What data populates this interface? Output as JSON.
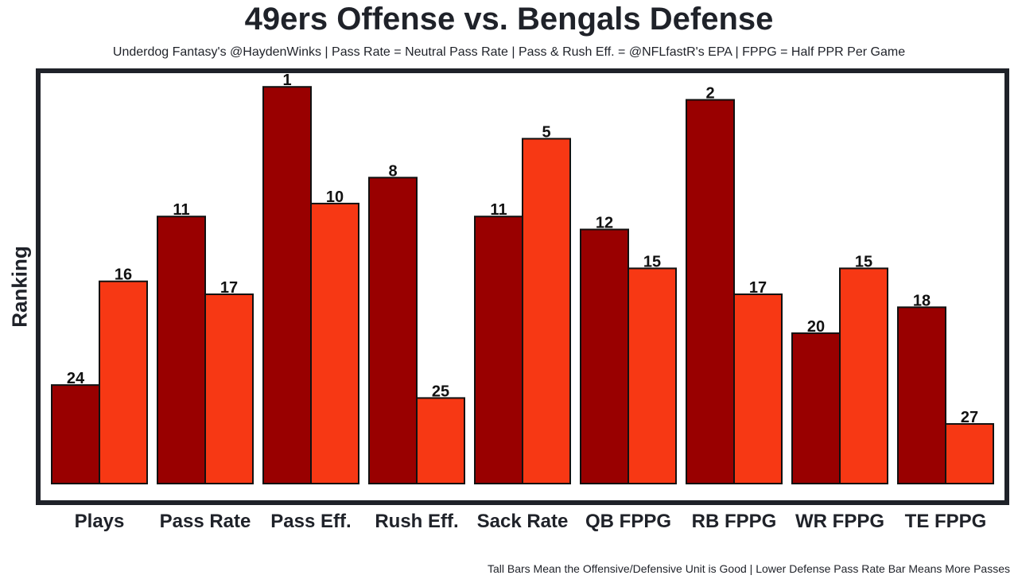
{
  "chart_data": {
    "type": "bar",
    "title": "49ers Offense vs. Bengals Defense",
    "subtitle": "Underdog Fantasy's @HaydenWinks | Pass Rate = Neutral Pass Rate | Pass & Rush Eff. = @NFLfastR's EPA | FPPG = Half PPR Per Game",
    "ylabel": "Ranking",
    "xlabel": "",
    "caption": "Tall Bars Mean the Offensive/Defensive Unit is Good | Lower Defense Pass Rate Bar Means More Passes",
    "categories": [
      "Plays",
      "Pass Rate",
      "Pass Eff.",
      "Rush Eff.",
      "Sack Rate",
      "QB FPPG",
      "RB FPPG",
      "WR FPPG",
      "TE FPPG"
    ],
    "series": [
      {
        "values": [
          24,
          11,
          1,
          8,
          11,
          12,
          2,
          20,
          18
        ],
        "color": "#990000"
      },
      {
        "values": [
          16,
          17,
          10,
          25,
          5,
          15,
          17,
          15,
          27
        ],
        "color": "#F73814"
      }
    ],
    "y_inverted": true,
    "grid": false
  }
}
